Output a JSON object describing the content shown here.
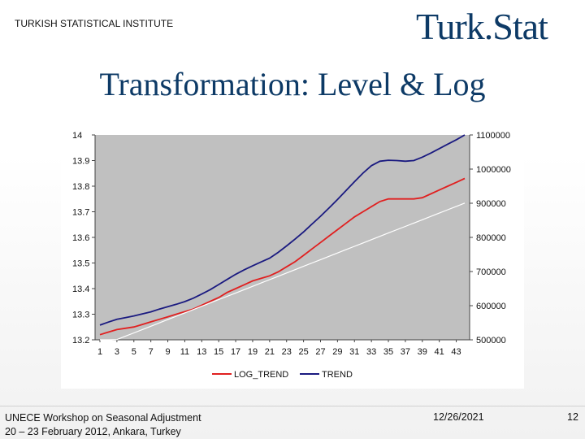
{
  "header": {
    "institute": "TURKISH STATISTICAL INSTITUTE",
    "brand": "Turk.Stat"
  },
  "slide": {
    "title": "Transformation: Level & Log"
  },
  "footer": {
    "line1": "UNECE Workshop on Seasonal Adjustment",
    "line2": "20 – 23 February 2012, Ankara, Turkey",
    "date": "12/26/2021",
    "page": "12"
  },
  "colors": {
    "title": "#0d3a66",
    "plot_bg": "#c0c0c0",
    "log_trend": "#e02020",
    "trend": "#1a1a80",
    "fit_line": "#ffffff"
  },
  "chart_data": {
    "type": "line",
    "x": [
      1,
      2,
      3,
      4,
      5,
      6,
      7,
      8,
      9,
      10,
      11,
      12,
      13,
      14,
      15,
      16,
      17,
      18,
      19,
      20,
      21,
      22,
      23,
      24,
      25,
      26,
      27,
      28,
      29,
      30,
      31,
      32,
      33,
      34,
      35,
      36,
      37,
      38,
      39,
      40,
      41,
      42,
      43,
      44
    ],
    "xticks": [
      1,
      3,
      5,
      7,
      9,
      11,
      13,
      15,
      17,
      19,
      21,
      23,
      25,
      27,
      29,
      31,
      33,
      35,
      37,
      39,
      41,
      43
    ],
    "y_left_lim": [
      13.2,
      14.0
    ],
    "y_left_ticks": [
      "13.2",
      "13.3",
      "13.4",
      "13.5",
      "13.6",
      "13.7",
      "13.8",
      "13.9",
      "14"
    ],
    "y_right_lim": [
      500000,
      1100000
    ],
    "y_right_ticks": [
      "500000",
      "600000",
      "700000",
      "800000",
      "900000",
      "1000000",
      "1100000"
    ],
    "grid": false,
    "legend_position": "bottom",
    "series": [
      {
        "name": "LOG_TREND",
        "axis": "left",
        "color": "#e02020",
        "values": [
          13.22,
          13.23,
          13.24,
          13.245,
          13.25,
          13.26,
          13.27,
          13.28,
          13.29,
          13.3,
          13.31,
          13.32,
          13.335,
          13.35,
          13.365,
          13.385,
          13.4,
          13.415,
          13.43,
          13.44,
          13.45,
          13.465,
          13.485,
          13.505,
          13.53,
          13.555,
          13.58,
          13.605,
          13.63,
          13.655,
          13.68,
          13.7,
          13.72,
          13.74,
          13.75,
          13.75,
          13.75,
          13.75,
          13.755,
          13.77,
          13.785,
          13.8,
          13.815,
          13.83
        ]
      },
      {
        "name": "TREND",
        "axis": "right",
        "color": "#1a1a80",
        "values": [
          543000,
          552000,
          560000,
          565000,
          570000,
          576000,
          582000,
          590000,
          597000,
          604000,
          612000,
          622000,
          634000,
          647000,
          662000,
          677000,
          692000,
          705000,
          717000,
          728000,
          739000,
          756000,
          775000,
          795000,
          816000,
          839000,
          862000,
          886000,
          911000,
          937000,
          963000,
          988000,
          1010000,
          1023000,
          1026000,
          1025000,
          1023000,
          1025000,
          1035000,
          1047000,
          1060000,
          1073000,
          1086000,
          1100000
        ]
      },
      {
        "name": "",
        "axis": "left",
        "color": "#ffffff",
        "values": [
          13.175,
          13.188,
          13.201,
          13.214,
          13.227,
          13.24,
          13.253,
          13.266,
          13.279,
          13.292,
          13.305,
          13.318,
          13.331,
          13.344,
          13.357,
          13.37,
          13.383,
          13.396,
          13.409,
          13.422,
          13.435,
          13.448,
          13.461,
          13.474,
          13.487,
          13.5,
          13.513,
          13.526,
          13.539,
          13.552,
          13.565,
          13.578,
          13.591,
          13.604,
          13.617,
          13.63,
          13.643,
          13.656,
          13.669,
          13.682,
          13.695,
          13.708,
          13.721,
          13.734
        ]
      }
    ]
  }
}
